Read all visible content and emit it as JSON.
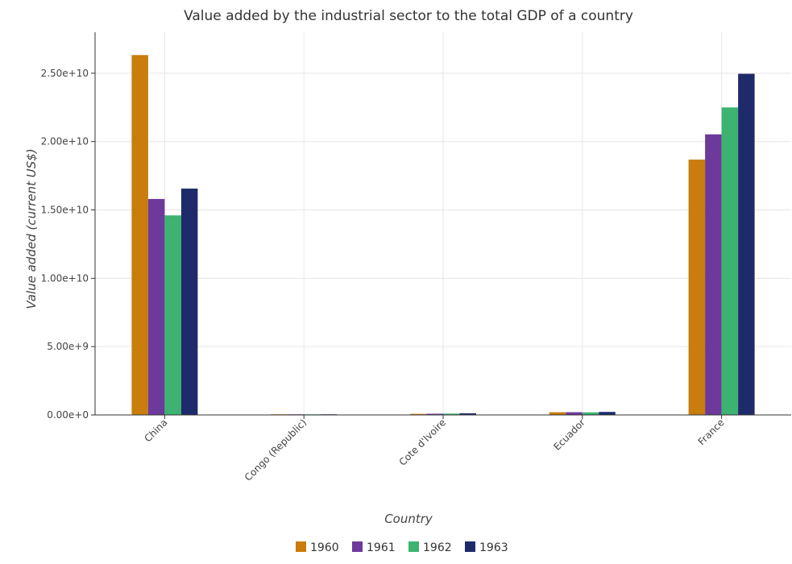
{
  "chart_data": {
    "type": "bar",
    "title": "Value added by the industrial sector to the total GDP of a country",
    "xlabel": "Country",
    "ylabel": "Value added (current US$)",
    "categories": [
      "China",
      "Congo (Republic)",
      "Cote d'Ivoire",
      "Ecuador",
      "France"
    ],
    "series": [
      {
        "name": "1960",
        "color": "#c87d0c",
        "values": [
          26330000000,
          30000000,
          80000000,
          200000000,
          18680000000
        ]
      },
      {
        "name": "1961",
        "color": "#6d3a9c",
        "values": [
          15800000000,
          30000000,
          90000000,
          200000000,
          20530000000
        ]
      },
      {
        "name": "1962",
        "color": "#3cb371",
        "values": [
          14600000000,
          35000000,
          100000000,
          190000000,
          22500000000
        ]
      },
      {
        "name": "1963",
        "color": "#1f2a6b",
        "values": [
          16560000000,
          35000000,
          120000000,
          220000000,
          24960000000
        ]
      }
    ],
    "ylim": [
      0,
      28000000000
    ],
    "yticks": [
      0,
      5000000000,
      10000000000,
      15000000000,
      20000000000,
      25000000000
    ],
    "ytick_labels": [
      "0.00e+0",
      "5.00e+9",
      "1.00e+10",
      "1.50e+10",
      "2.00e+10",
      "2.50e+10"
    ],
    "grid": true,
    "legend_position": "bottom-center"
  }
}
